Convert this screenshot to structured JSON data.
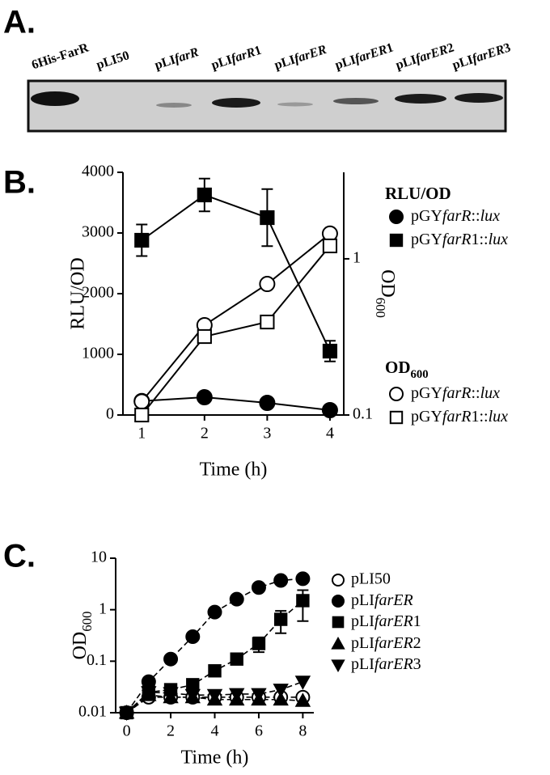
{
  "panel_labels": [
    "A.",
    "B.",
    "C."
  ],
  "blot": {
    "lanes": [
      "6His-FarR",
      "pLI50",
      "pLIfarR",
      "pLIfarR1",
      "pLIfarER",
      "pLIfarER1",
      "pLIfarER2",
      "pLIfarER3"
    ]
  },
  "chart_data": [
    {
      "type": "line",
      "xlabel": "Time (h)",
      "ylabel": "RLU/OD",
      "y2label": "OD600",
      "x": [
        1,
        2,
        3,
        4
      ],
      "xlim": [
        0.7,
        4.22
      ],
      "xticks": [
        1,
        2,
        3,
        4
      ],
      "ylim": [
        0,
        4000
      ],
      "yticks": [
        0,
        1000,
        2000,
        3000,
        4000
      ],
      "y2lim": [
        0.1,
        3.58
      ],
      "y2ticks": [
        0.1,
        1
      ],
      "y2log": true,
      "legend": "right",
      "series": [
        {
          "name": "pGYfarR::lux",
          "color": "#000000",
          "marker": "circle",
          "filled": true,
          "values": [
            230,
            293,
            200,
            80
          ],
          "errors": [
            null,
            null,
            null,
            null
          ]
        },
        {
          "name": "pGYfarR1::lux",
          "color": "#000000",
          "marker": "square",
          "filled": true,
          "values": [
            2880,
            3627,
            3253,
            1053
          ],
          "errors": [
            260,
            270,
            470,
            170
          ]
        },
        {
          "name": "pGYfarR::lux",
          "color": "#000000",
          "marker": "circle",
          "filled": false,
          "axis": "y2",
          "values": [
            0.122,
            0.376,
            0.69,
            1.45
          ],
          "errors": [
            null,
            null,
            null,
            null
          ]
        },
        {
          "name": "pGYfarR1::lux",
          "color": "#000000",
          "marker": "square",
          "filled": false,
          "axis": "y2",
          "values": [
            0.1,
            0.318,
            0.394,
            1.21
          ],
          "errors": [
            null,
            null,
            null,
            null
          ]
        }
      ]
    },
    {
      "type": "line",
      "xlabel": "Time (h)",
      "ylabel": "OD600",
      "x": [
        0,
        1,
        2,
        3,
        4,
        5,
        6,
        7,
        8
      ],
      "xlim": [
        -0.5,
        8.5
      ],
      "xticks": [
        0,
        2,
        4,
        6,
        8
      ],
      "ylim": [
        0.01,
        10
      ],
      "yticks": [
        0.01,
        0.1,
        1,
        10
      ],
      "ylog": true,
      "dashed": true,
      "legend": "right",
      "series": [
        {
          "name": "pLI50",
          "color": "#000000",
          "marker": "circle",
          "filled": false,
          "values": [
            0.01,
            0.02,
            0.02,
            0.02,
            0.02,
            0.02,
            0.02,
            0.02,
            0.02
          ],
          "errors": [
            null,
            null,
            null,
            null,
            null,
            null,
            null,
            null,
            null
          ]
        },
        {
          "name": "pLIfarER",
          "color": "#000000",
          "marker": "circle",
          "filled": true,
          "values": [
            0.01,
            0.04,
            0.11,
            0.3,
            0.9,
            1.6,
            2.7,
            3.7,
            4.0
          ],
          "errors": [
            null,
            null,
            null,
            null,
            null,
            null,
            null,
            null,
            null
          ]
        },
        {
          "name": "pLIfarER1",
          "color": "#000000",
          "marker": "square",
          "filled": true,
          "values": [
            0.01,
            0.025,
            0.028,
            0.035,
            0.065,
            0.11,
            0.22,
            0.65,
            1.5
          ],
          "errors": [
            null,
            null,
            null,
            null,
            null,
            null,
            0.07,
            0.3,
            0.9
          ]
        },
        {
          "name": "pLIfarER2",
          "color": "#000000",
          "marker": "triangle-up",
          "filled": true,
          "values": [
            0.01,
            0.022,
            0.02,
            0.02,
            0.018,
            0.018,
            0.018,
            0.018,
            0.017
          ],
          "errors": [
            null,
            null,
            null,
            null,
            null,
            null,
            null,
            null,
            null
          ]
        },
        {
          "name": "pLIfarER3",
          "color": "#000000",
          "marker": "triangle-down",
          "filled": true,
          "values": [
            0.01,
            0.025,
            0.024,
            0.022,
            0.022,
            0.023,
            0.023,
            0.028,
            0.04
          ],
          "errors": [
            null,
            null,
            null,
            null,
            null,
            null,
            null,
            null,
            null
          ]
        }
      ]
    }
  ]
}
